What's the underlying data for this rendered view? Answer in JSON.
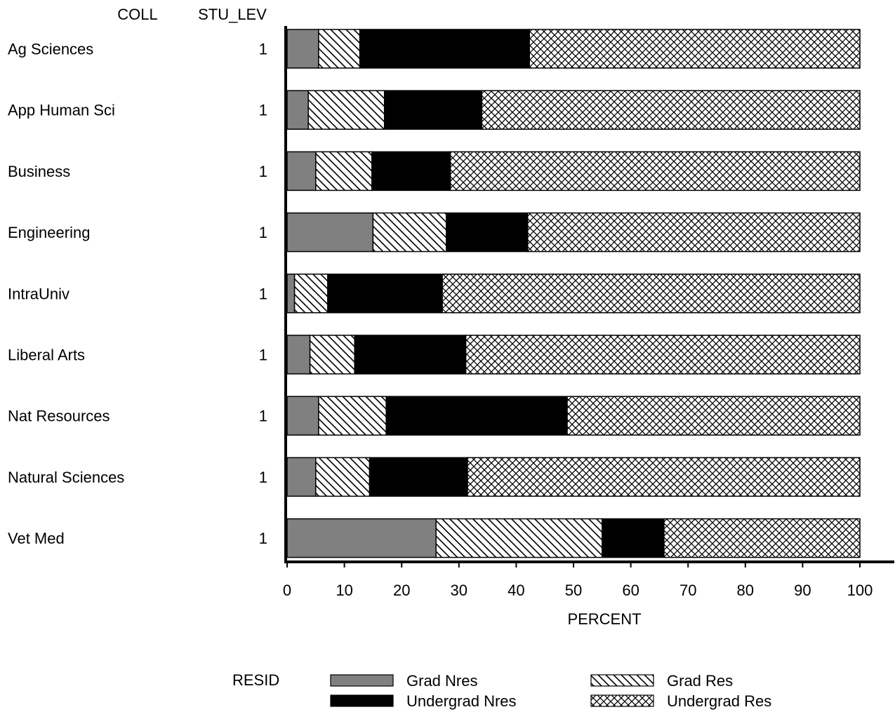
{
  "chart_data": {
    "type": "bar",
    "orientation": "horizontal",
    "stacked": true,
    "column_headers": [
      "COLL",
      "STU_LEV"
    ],
    "categories": [
      "Ag Sciences",
      "App Human Sci",
      "Business",
      "Engineering",
      "IntraUniv",
      "Liberal Arts",
      "Nat Resources",
      "Natural Sciences",
      "Vet Med"
    ],
    "stu_lev": [
      "1",
      "1",
      "1",
      "1",
      "1",
      "1",
      "1",
      "1",
      "1"
    ],
    "series": [
      {
        "name": "Grad Nres",
        "fill": "gray",
        "values": [
          5.5,
          3.7,
          5.0,
          15.0,
          1.3,
          4.0,
          5.5,
          5.0,
          26.0
        ]
      },
      {
        "name": "Grad Res",
        "fill": "diagonal",
        "values": [
          7.2,
          13.3,
          9.8,
          12.8,
          5.8,
          7.8,
          11.8,
          9.4,
          29.0
        ]
      },
      {
        "name": "Undergrad Nres",
        "fill": "black",
        "values": [
          29.6,
          17.0,
          13.7,
          14.2,
          20.0,
          19.4,
          31.6,
          17.1,
          10.8
        ]
      },
      {
        "name": "Undergrad Res",
        "fill": "crosshatch",
        "values": [
          57.7,
          66.0,
          71.5,
          58.0,
          72.9,
          68.8,
          51.1,
          68.5,
          34.2
        ]
      }
    ],
    "xlabel": "PERCENT",
    "xlim": [
      0,
      100
    ],
    "xticks": [
      "0",
      "10",
      "20",
      "30",
      "40",
      "50",
      "60",
      "70",
      "80",
      "90",
      "100"
    ],
    "legend_title": "RESID",
    "legend_position": "bottom",
    "grid": false
  }
}
